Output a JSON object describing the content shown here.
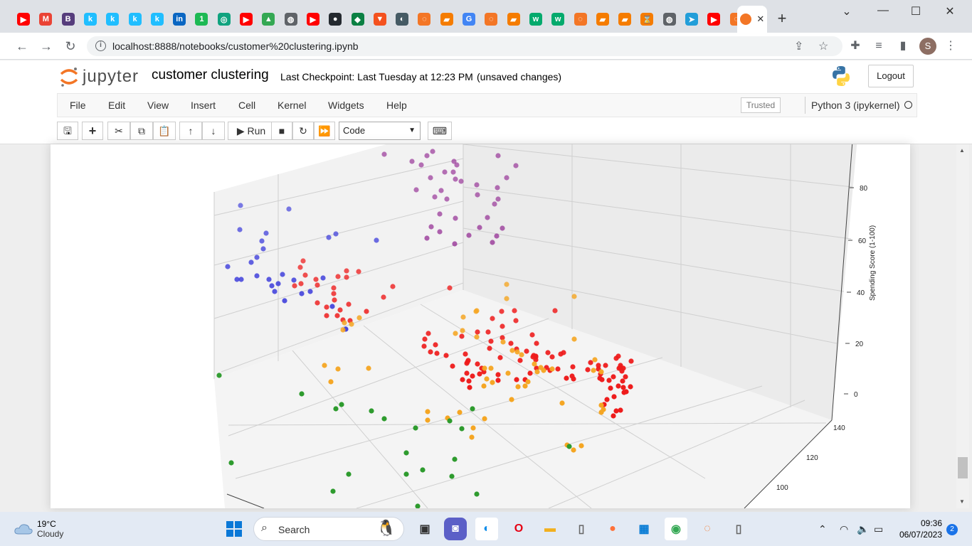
{
  "browser": {
    "tab_favicons": [
      {
        "icon": "youtube-icon",
        "color": "#ff0000",
        "glyph": "▶"
      },
      {
        "icon": "gmail-icon",
        "color": "#ea4335",
        "glyph": "M"
      },
      {
        "icon": "bootstrap-icon",
        "color": "#563d7c",
        "glyph": "B"
      },
      {
        "icon": "kaggle-icon",
        "color": "#20beff",
        "glyph": "k"
      },
      {
        "icon": "kaggle-icon",
        "color": "#20beff",
        "glyph": "k"
      },
      {
        "icon": "kaggle-icon",
        "color": "#20beff",
        "glyph": "k"
      },
      {
        "icon": "kaggle-icon",
        "color": "#20beff",
        "glyph": "k"
      },
      {
        "icon": "linkedin-icon",
        "color": "#0a66c2",
        "glyph": "in"
      },
      {
        "icon": "notification-badge-icon",
        "color": "#1db954",
        "glyph": "1"
      },
      {
        "icon": "openai-icon",
        "color": "#10a37f",
        "glyph": "◎"
      },
      {
        "icon": "youtube-icon",
        "color": "#ff0000",
        "glyph": "▶"
      },
      {
        "icon": "google-drive-icon",
        "color": "#34a853",
        "glyph": "▲"
      },
      {
        "icon": "globe-icon",
        "color": "#5f6368",
        "glyph": "◍"
      },
      {
        "icon": "youtube-icon",
        "color": "#ff0000",
        "glyph": "▶"
      },
      {
        "icon": "github-icon",
        "color": "#24292f",
        "glyph": "●"
      },
      {
        "icon": "tab-app-icon",
        "color": "#0b8043",
        "glyph": "◆"
      },
      {
        "icon": "tab-app-icon",
        "color": "#f4511e",
        "glyph": "▼"
      },
      {
        "icon": "tab-app-icon",
        "color": "#455a64",
        "glyph": "◐"
      },
      {
        "icon": "jupyter-icon",
        "color": "#f37626",
        "glyph": "◌"
      },
      {
        "icon": "tab-app-icon",
        "color": "#f57c00",
        "glyph": "▰"
      },
      {
        "icon": "google-icon",
        "color": "#4285f4",
        "glyph": "G"
      },
      {
        "icon": "jupyter-icon",
        "color": "#f37626",
        "glyph": "◌"
      },
      {
        "icon": "tab-app-icon",
        "color": "#f57c00",
        "glyph": "▰"
      },
      {
        "icon": "w3schools-icon",
        "color": "#04aa6d",
        "glyph": "w"
      },
      {
        "icon": "w3schools-icon",
        "color": "#04aa6d",
        "glyph": "w"
      },
      {
        "icon": "jupyter-icon",
        "color": "#f37626",
        "glyph": "◌"
      },
      {
        "icon": "tab-app-icon",
        "color": "#f57c00",
        "glyph": "▰"
      },
      {
        "icon": "tab-app-icon",
        "color": "#f57c00",
        "glyph": "▰"
      },
      {
        "icon": "hourglass-icon",
        "color": "#f57c00",
        "glyph": "⌛"
      },
      {
        "icon": "globe-icon",
        "color": "#5f6368",
        "glyph": "◍"
      },
      {
        "icon": "telegram-icon",
        "color": "#229ed9",
        "glyph": "➤"
      },
      {
        "icon": "youtube-icon",
        "color": "#ff0000",
        "glyph": "▶"
      },
      {
        "icon": "jupyter-icon",
        "color": "#f37626",
        "glyph": "◌"
      }
    ],
    "active_tab_close": "✕",
    "new_tab": "+",
    "url": "localhost:8888/notebooks/customer%20clustering.ipynb",
    "profile_initial": "S"
  },
  "jupyter": {
    "logo_text": "jupyter",
    "notebook_name": "customer clustering",
    "checkpoint": "Last Checkpoint: Last Tuesday at 12:23 PM",
    "status": "(unsaved changes)",
    "logout": "Logout",
    "menu": [
      "File",
      "Edit",
      "View",
      "Insert",
      "Cell",
      "Kernel",
      "Widgets",
      "Help"
    ],
    "trusted": "Trusted",
    "kernel": "Python 3 (ipykernel)",
    "run_label": "Run",
    "cell_type": "Code"
  },
  "chart_data": {
    "type": "scatter",
    "projection": "3d",
    "zlabel": "Spending Score (1-100)",
    "z_ticks": [
      0,
      20,
      40,
      60,
      80
    ],
    "y_ticks": [
      100,
      120,
      140
    ],
    "grid": true,
    "legend": "none",
    "note": "points listed as projected screen-space samples per cluster color",
    "clusters": [
      {
        "color": "#8b1a8b",
        "points": [
          [
            540,
            12
          ],
          [
            600,
            14
          ],
          [
            608,
            8
          ],
          [
            579,
            22
          ],
          [
            592,
            27
          ],
          [
            642,
            27
          ],
          [
            625,
            37
          ],
          [
            605,
            45
          ],
          [
            648,
            50
          ],
          [
            585,
            62
          ],
          [
            620,
            63
          ],
          [
            611,
            72
          ],
          [
            640,
            47
          ],
          [
            638,
            22
          ],
          [
            628,
            75
          ],
          [
            618,
            96
          ],
          [
            640,
            102
          ],
          [
            606,
            114
          ],
          [
            600,
            130
          ],
          [
            618,
            121
          ],
          [
            639,
            138
          ],
          [
            700,
            14
          ],
          [
            637,
            37
          ],
          [
            670,
            55
          ],
          [
            700,
            75
          ],
          [
            695,
            82
          ],
          [
            671,
            69
          ],
          [
            699,
            59
          ],
          [
            712,
            45
          ],
          [
            725,
            28
          ],
          [
            685,
            101
          ],
          [
            674,
            115
          ],
          [
            706,
            116
          ],
          [
            659,
            126
          ],
          [
            692,
            136
          ],
          [
            698,
            127
          ]
        ]
      },
      {
        "color": "#2d2dd9",
        "points": [
          [
            338,
            84
          ],
          [
            406,
            89
          ],
          [
            337,
            118
          ],
          [
            374,
            123
          ],
          [
            368,
            134
          ],
          [
            370,
            145
          ],
          [
            361,
            157
          ],
          [
            353,
            164
          ],
          [
            320,
            170
          ],
          [
            339,
            188
          ],
          [
            333,
            188
          ],
          [
            361,
            183
          ],
          [
            378,
            188
          ],
          [
            397,
            181
          ],
          [
            454,
            186
          ],
          [
            382,
            197
          ],
          [
            413,
            189
          ],
          [
            391,
            194
          ],
          [
            386,
            205
          ],
          [
            436,
            205
          ],
          [
            467,
            226
          ],
          [
            424,
            208
          ],
          [
            400,
            218
          ],
          [
            486,
            258
          ],
          [
            529,
            133
          ],
          [
            462,
            129
          ],
          [
            472,
            124
          ]
        ]
      },
      {
        "color": "#ee1c1c",
        "points": [
          [
            422,
            171
          ],
          [
            426,
            162
          ],
          [
            429,
            182
          ],
          [
            423,
            194
          ],
          [
            414,
            197
          ],
          [
            444,
            188
          ],
          [
            446,
            196
          ],
          [
            469,
            200
          ],
          [
            487,
            185
          ],
          [
            487,
            176
          ],
          [
            504,
            177
          ],
          [
            475,
            184
          ],
          [
            446,
            221
          ],
          [
            459,
            227
          ],
          [
            470,
            217
          ],
          [
            478,
            231
          ],
          [
            490,
            223
          ],
          [
            469,
            208
          ],
          [
            474,
            239
          ],
          [
            459,
            239
          ],
          [
            492,
            246
          ],
          [
            515,
            233
          ],
          [
            482,
            245
          ],
          [
            552,
            198
          ],
          [
            539,
            213
          ],
          [
            632,
            200
          ],
          [
            602,
            264
          ],
          [
            597,
            272
          ],
          [
            612,
            280
          ],
          [
            596,
            282
          ],
          [
            605,
            290
          ],
          [
            627,
            295
          ],
          [
            614,
            292
          ],
          [
            649,
            268
          ],
          [
            671,
            262
          ],
          [
            686,
            262
          ],
          [
            706,
            254
          ],
          [
            654,
            293
          ],
          [
            658,
            302
          ],
          [
            636,
            310
          ],
          [
            671,
            307
          ],
          [
            656,
            306
          ],
          [
            674,
            321
          ],
          [
            659,
            331
          ],
          [
            706,
            270
          ],
          [
            690,
            275
          ],
          [
            718,
            278
          ],
          [
            688,
            285
          ],
          [
            703,
            298
          ],
          [
            726,
            286
          ],
          [
            740,
            289
          ],
          [
            753,
            297
          ],
          [
            748,
            266
          ],
          [
            780,
            232
          ],
          [
            723,
            232
          ],
          [
            725,
            246
          ],
          [
            705,
            233
          ],
          [
            692,
            243
          ],
          [
            657,
            304
          ],
          [
            664,
            324
          ],
          [
            680,
            318
          ],
          [
            700,
            330
          ],
          [
            750,
            295
          ],
          [
            753,
            301
          ],
          [
            770,
            291
          ],
          [
            768,
            312
          ],
          [
            788,
            293
          ],
          [
            754,
            278
          ],
          [
            753,
            296
          ],
          [
            773,
            316
          ],
          [
            804,
            324
          ],
          [
            841,
            309
          ],
          [
            844,
            321
          ],
          [
            856,
            330
          ],
          [
            879,
            325
          ],
          [
            862,
            325
          ],
          [
            869,
            296
          ],
          [
            866,
            299
          ],
          [
            872,
            312
          ],
          [
            872,
            309
          ],
          [
            887,
            303
          ],
          [
            876,
            313
          ],
          [
            841,
            314
          ],
          [
            874,
            317
          ],
          [
            869,
            338
          ],
          [
            875,
            331
          ],
          [
            863,
            353
          ],
          [
            872,
            372
          ],
          [
            877,
            347
          ],
          [
            830,
            305
          ],
          [
            826,
            315
          ],
          [
            805,
            311
          ],
          [
            796,
            327
          ],
          [
            784,
            314
          ],
          [
            754,
            313
          ],
          [
            738,
            329
          ],
          [
            745,
            320
          ],
          [
            726,
            329
          ],
          [
            660,
            340
          ],
          [
            650,
            329
          ],
          [
            656,
            320
          ],
          [
            677,
            313
          ],
          [
            700,
            322
          ],
          [
            731,
            302
          ],
          [
            749,
            297
          ],
          [
            792,
            291
          ],
          [
            776,
            297
          ],
          [
            806,
            328
          ],
          [
            858,
            341
          ],
          [
            853,
            357
          ],
          [
            862,
            380
          ],
          [
            849,
            364
          ],
          [
            866,
            373
          ],
          [
            880,
            346
          ],
          [
            886,
            339
          ],
          [
            876,
            340
          ],
          [
            870,
            313
          ],
          [
            851,
            309
          ],
          [
            843,
            327
          ],
          [
            846,
            329
          ]
        ]
      },
      {
        "color": "#f5a623",
        "points": [
          [
            484,
            249
          ],
          [
            505,
            242
          ],
          [
            494,
            251
          ],
          [
            482,
            259
          ],
          [
            456,
            309
          ],
          [
            475,
            314
          ],
          [
            518,
            313
          ],
          [
            465,
            332
          ],
          [
            640,
            264
          ],
          [
            650,
            260
          ],
          [
            670,
            232
          ],
          [
            712,
            215
          ],
          [
            712,
            195
          ],
          [
            669,
            233
          ],
          [
            651,
            241
          ],
          [
            670,
            269
          ],
          [
            707,
            276
          ],
          [
            720,
            288
          ],
          [
            727,
            290
          ],
          [
            733,
            294
          ],
          [
            751,
            307
          ],
          [
            760,
            312
          ],
          [
            764,
            316
          ],
          [
            755,
            318
          ],
          [
            742,
            332
          ],
          [
            738,
            338
          ],
          [
            728,
            339
          ],
          [
            714,
            320
          ],
          [
            690,
            313
          ],
          [
            681,
            313
          ],
          [
            684,
            328
          ],
          [
            680,
            338
          ],
          [
            692,
            333
          ],
          [
            719,
            357
          ],
          [
            681,
            384
          ],
          [
            646,
            375
          ],
          [
            629,
            383
          ],
          [
            601,
            374
          ],
          [
            601,
            386
          ],
          [
            663,
            410
          ],
          [
            665,
            397
          ],
          [
            776,
            314
          ],
          [
            807,
            272
          ],
          [
            807,
            212
          ],
          [
            790,
            362
          ],
          [
            836,
            301
          ],
          [
            834,
            316
          ],
          [
            845,
            318
          ],
          [
            848,
            371
          ],
          [
            845,
            365
          ],
          [
            845,
            375
          ],
          [
            817,
            422
          ],
          [
            806,
            428
          ],
          [
            797,
            421
          ]
        ]
      },
      {
        "color": "#2e9b2e",
        "points": [
          [
            308,
            323
          ],
          [
            424,
            349
          ],
          [
            480,
            364
          ],
          [
            472,
            370
          ],
          [
            522,
            373
          ],
          [
            540,
            384
          ],
          [
            584,
            397
          ],
          [
            664,
            370
          ],
          [
            649,
            398
          ],
          [
            632,
            387
          ],
          [
            571,
            432
          ],
          [
            639,
            441
          ],
          [
            571,
            462
          ],
          [
            490,
            462
          ],
          [
            468,
            486
          ],
          [
            594,
            456
          ],
          [
            587,
            507
          ],
          [
            635,
            465
          ],
          [
            670,
            490
          ],
          [
            800,
            423
          ],
          [
            325,
            446
          ]
        ]
      }
    ]
  },
  "taskbar": {
    "temp": "19°C",
    "condition": "Cloudy",
    "search": "Search",
    "time": "09:36",
    "date": "06/07/2023",
    "notifications": "2"
  }
}
